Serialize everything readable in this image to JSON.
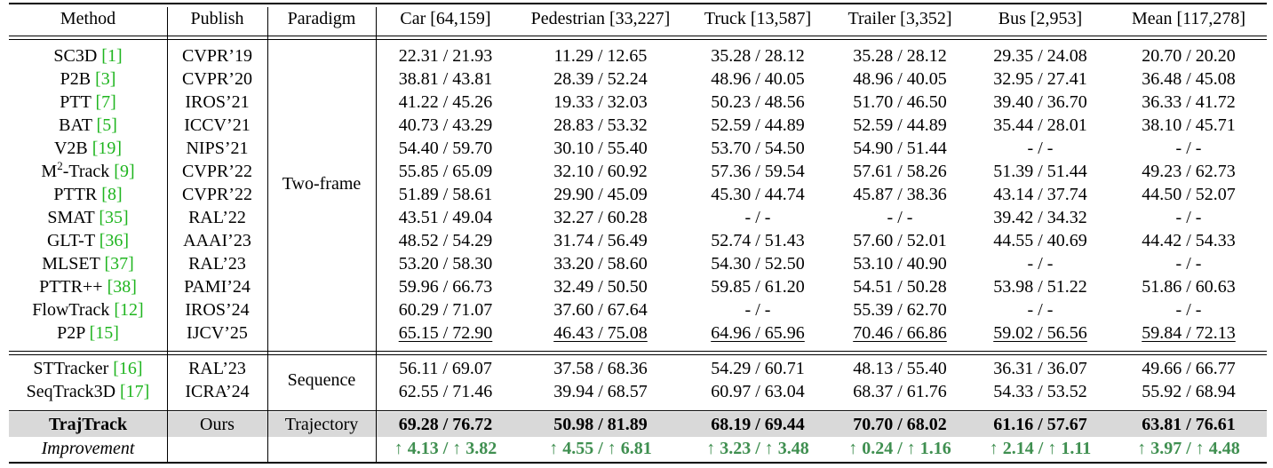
{
  "header": {
    "method": "Method",
    "publish": "Publish",
    "paradigm": "Paradigm",
    "car": "Car [64,159]",
    "pedestrian": "Pedestrian [33,227]",
    "truck": "Truck [13,587]",
    "trailer": "Trailer [3,352]",
    "bus": "Bus [2,953]",
    "mean": "Mean [117,278]"
  },
  "groups": [
    {
      "paradigm": "Two-frame",
      "rows": [
        {
          "name": "SC3D",
          "ref": "[1]",
          "venue": "CVPR’19",
          "car": "22.31 / 21.93",
          "ped": "11.29 / 12.65",
          "truck": "35.28 / 28.12",
          "trailer": "35.28 / 28.12",
          "bus": "29.35 / 24.08",
          "mean": "20.70 / 20.20"
        },
        {
          "name": "P2B",
          "ref": "[3]",
          "venue": "CVPR’20",
          "car": "38.81 / 43.81",
          "ped": "28.39 / 52.24",
          "truck": "48.96 / 40.05",
          "trailer": "48.96 / 40.05",
          "bus": "32.95 / 27.41",
          "mean": "36.48 / 45.08"
        },
        {
          "name": "PTT",
          "ref": "[7]",
          "venue": "IROS’21",
          "car": "41.22 / 45.26",
          "ped": "19.33 / 32.03",
          "truck": "50.23 / 48.56",
          "trailer": "51.70 / 46.50",
          "bus": "39.40 / 36.70",
          "mean": "36.33 / 41.72"
        },
        {
          "name": "BAT",
          "ref": "[5]",
          "venue": "ICCV’21",
          "car": "40.73 / 43.29",
          "ped": "28.83 / 53.32",
          "truck": "52.59 / 44.89",
          "trailer": "52.59 / 44.89",
          "bus": "35.44 / 28.01",
          "mean": "38.10 / 45.71"
        },
        {
          "name": "V2B",
          "ref": "[19]",
          "venue": "NIPS’21",
          "car": "54.40 / 59.70",
          "ped": "30.10 / 55.40",
          "truck": "53.70 / 54.50",
          "trailer": "54.90 / 51.44",
          "bus": "- / -",
          "mean": "- / -"
        },
        {
          "name": "M",
          "sup": "2",
          "name_suffix": "-Track",
          "ref": "[9]",
          "venue": "CVPR’22",
          "car": "55.85 / 65.09",
          "ped": "32.10 / 60.92",
          "truck": "57.36 / 59.54",
          "trailer": "57.61 / 58.26",
          "bus": "51.39 / 51.44",
          "mean": "49.23 / 62.73"
        },
        {
          "name": "PTTR",
          "ref": "[8]",
          "venue": "CVPR’22",
          "car": "51.89 / 58.61",
          "ped": "29.90 / 45.09",
          "truck": "45.30 / 44.74",
          "trailer": "45.87 / 38.36",
          "bus": "43.14 / 37.74",
          "mean": "44.50 / 52.07"
        },
        {
          "name": "SMAT",
          "ref": "[35]",
          "venue": "RAL’22",
          "car": "43.51 / 49.04",
          "ped": "32.27 / 60.28",
          "truck": "- / -",
          "trailer": "- / -",
          "bus": "39.42 / 34.32",
          "mean": "- / -"
        },
        {
          "name": "GLT-T",
          "ref": "[36]",
          "venue": "AAAI’23",
          "car": "48.52 / 54.29",
          "ped": "31.74 / 56.49",
          "truck": "52.74 / 51.43",
          "trailer": "57.60 / 52.01",
          "bus": "44.55 / 40.69",
          "mean": "44.42 / 54.33"
        },
        {
          "name": "MLSET",
          "ref": "[37]",
          "venue": "RAL’23",
          "car": "53.20 / 58.30",
          "ped": "33.20 / 58.60",
          "truck": "54.30 / 52.50",
          "trailer": "53.10 / 40.90",
          "bus": "- / -",
          "mean": "- / -"
        },
        {
          "name": "PTTR++",
          "ref": "[38]",
          "venue": "PAMI’24",
          "car": "59.96 / 66.73",
          "ped": "32.49 / 50.50",
          "truck": "59.85 / 61.20",
          "trailer": "54.51 / 50.28",
          "bus": "53.98 / 51.22",
          "mean": "51.86 / 60.63"
        },
        {
          "name": "FlowTrack",
          "ref": "[12]",
          "venue": "IROS’24",
          "car": "60.29 / 71.07",
          "ped": "37.60 / 67.64",
          "truck": "- / -",
          "trailer": "55.39 / 62.70",
          "bus": "- / -",
          "mean": "- / -"
        },
        {
          "name": "P2P",
          "ref": "[15]",
          "venue": "IJCV’25",
          "car": "65.15 / 72.90",
          "ped": "46.43 / 75.08",
          "truck": "64.96 / 65.96",
          "trailer": "70.46 / 66.86",
          "bus": "59.02 / 56.56",
          "mean": "59.84 / 72.13",
          "underline": true
        }
      ]
    },
    {
      "paradigm": "Sequence",
      "rows": [
        {
          "name": "STTracker",
          "ref": "[16]",
          "venue": "RAL’23",
          "car": "56.11 / 69.07",
          "ped": "37.58 / 68.36",
          "truck": "54.29 / 60.71",
          "trailer": "48.13 / 55.40",
          "bus": "36.31 / 36.07",
          "mean": "49.66 / 66.77"
        },
        {
          "name": "SeqTrack3D",
          "ref": "[17]",
          "venue": "ICRA’24",
          "car": "62.55 / 71.46",
          "ped": "39.94 / 68.57",
          "truck": "60.97 / 63.04",
          "trailer": "68.37 / 61.76",
          "bus": "54.33 / 53.52",
          "mean": "55.92 / 68.94"
        }
      ]
    }
  ],
  "ours": {
    "name": "TrajTrack",
    "venue": "Ours",
    "paradigm": "Trajectory",
    "car": "69.28 / 76.72",
    "ped": "50.98 / 81.89",
    "truck": "68.19 / 69.44",
    "trailer": "70.70 / 68.02",
    "bus": "61.16 / 57.67",
    "mean": "63.81 / 76.61"
  },
  "improvement": {
    "label": "Improvement",
    "car": "↑ 4.13 / ↑ 3.82",
    "ped": "↑ 4.55 / ↑ 6.81",
    "truck": "↑ 3.23 / ↑ 3.48",
    "trailer": "↑ 0.24 / ↑ 1.16",
    "bus": "↑ 2.14 / ↑ 1.11",
    "mean": "↑ 3.97 / ↑ 4.48"
  },
  "colors": {
    "ref_link": "#1fb51f",
    "improvement": "#3f8f50",
    "highlight_band": "#d9d9d9"
  }
}
